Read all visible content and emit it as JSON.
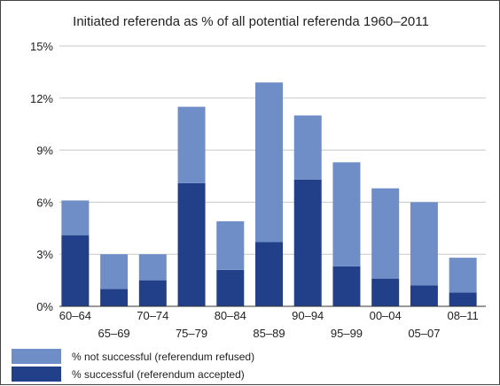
{
  "chart_data": {
    "type": "bar",
    "stacked": true,
    "title": "Initiated referenda as % of all potential referenda 1960–2011",
    "categories": [
      "60–64",
      "65–69",
      "70–74",
      "75–79",
      "80–84",
      "85–89",
      "90–94",
      "95–99",
      "00–04",
      "05–07",
      "08–11"
    ],
    "series": [
      {
        "name": "% successful (referendum accepted)",
        "color": "#22408a",
        "values": [
          4.1,
          1.0,
          1.5,
          7.1,
          2.1,
          3.7,
          7.3,
          2.3,
          1.6,
          1.2,
          0.8
        ]
      },
      {
        "name": "% not successful (referendum refused)",
        "color": "#6f8ec8",
        "values": [
          2.0,
          2.0,
          1.5,
          4.4,
          2.8,
          9.2,
          3.7,
          6.0,
          5.2,
          4.8,
          2.0
        ]
      }
    ],
    "ylim": [
      0,
      15
    ],
    "yticks": [
      0,
      3,
      6,
      9,
      12,
      15
    ],
    "ytick_labels": [
      "0%",
      "3%",
      "6%",
      "9%",
      "12%",
      "15%"
    ],
    "grid": true,
    "xlabel": "",
    "ylabel": "",
    "legend_position": "bottom-left",
    "legend_order": [
      "% not successful (referendum refused)",
      "% successful (referendum accepted)"
    ]
  }
}
